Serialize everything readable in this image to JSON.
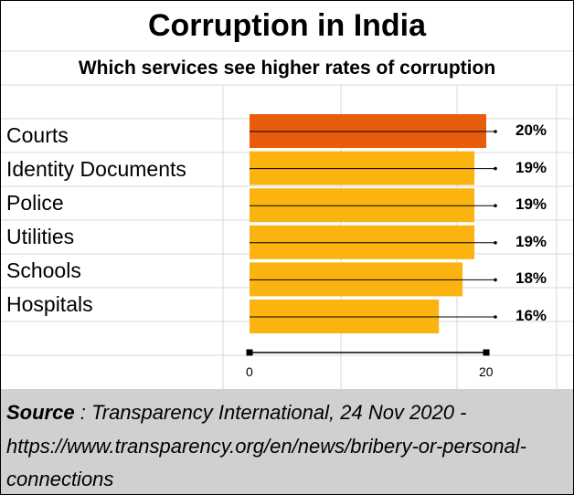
{
  "title": "Corruption in India",
  "subtitle": "Which services see higher rates of corruption",
  "source": {
    "label": "Source",
    "separator": " : ",
    "text": "Transparency International, 24 Nov 2020 - https://www.transparency.org/en/news/bribery-or-personal-connections"
  },
  "colors": {
    "highlight": "#e85d0c",
    "bar": "#fbb40f"
  },
  "chart_data": {
    "type": "bar",
    "orientation": "horizontal",
    "categories": [
      "Courts",
      "Identity Documents",
      "Police",
      "Utilities",
      "Schools",
      "Hospitals"
    ],
    "values": [
      20,
      19,
      19,
      19,
      18,
      16
    ],
    "value_labels": [
      "20%",
      "19%",
      "19%",
      "19%",
      "18%",
      "16%"
    ],
    "xlim": [
      0,
      20
    ],
    "x_ticks": [
      "0",
      "20"
    ],
    "grid": true
  }
}
